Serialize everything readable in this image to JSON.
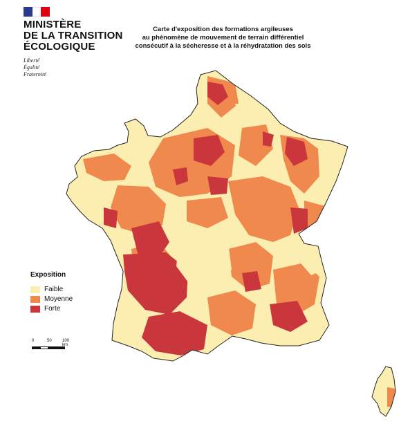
{
  "header": {
    "ministry_lines": [
      "MINISTÈRE",
      "DE LA TRANSITION",
      "ÉCOLOGIQUE"
    ],
    "motto_lines": [
      "Liberté",
      "Égalité",
      "Fraternité"
    ],
    "flag_colors": [
      "#2b3a8f",
      "#ffffff",
      "#e1000f"
    ]
  },
  "map": {
    "title_lines": [
      "Carte d'exposition des formations argileuses",
      "au phénomène de mouvement de terrain différentiel",
      "consécutif à la sécheresse et à la réhydratation des sols"
    ],
    "colors": {
      "faible": "#fbeeb0",
      "moyenne": "#f0894e",
      "forte": "#c9373c",
      "outline": "#222222"
    }
  },
  "legend": {
    "title": "Exposition",
    "items": [
      {
        "label": "Faible",
        "color": "#fbeeb0"
      },
      {
        "label": "Moyenne",
        "color": "#f0894e"
      },
      {
        "label": "Forte",
        "color": "#c9373c"
      }
    ]
  },
  "scale": {
    "labels": [
      "0",
      "50",
      "100 km"
    ]
  }
}
